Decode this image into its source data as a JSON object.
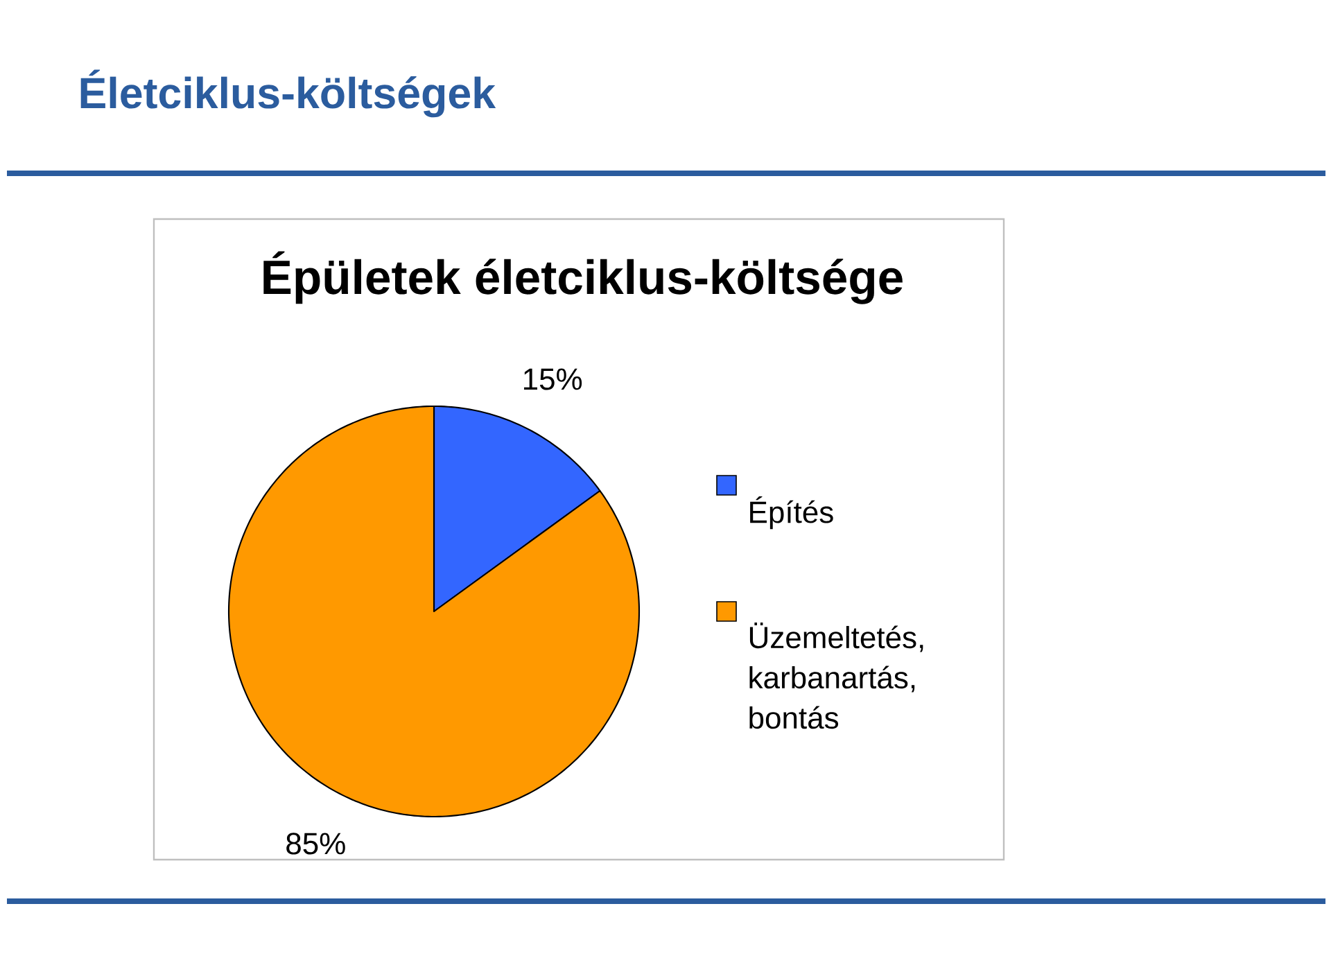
{
  "chart_data": {
    "type": "pie",
    "title": "Életciklus-költségek",
    "subtitle": "Épületek életciklus-költsége",
    "categories": [
      "Építés",
      "Üzemeltetés, karbanartás, bontás"
    ],
    "values": [
      15,
      85
    ],
    "colors": [
      "#3366ff",
      "#ff9900"
    ],
    "value_labels": [
      "15%",
      "85%"
    ],
    "legend": "right"
  }
}
